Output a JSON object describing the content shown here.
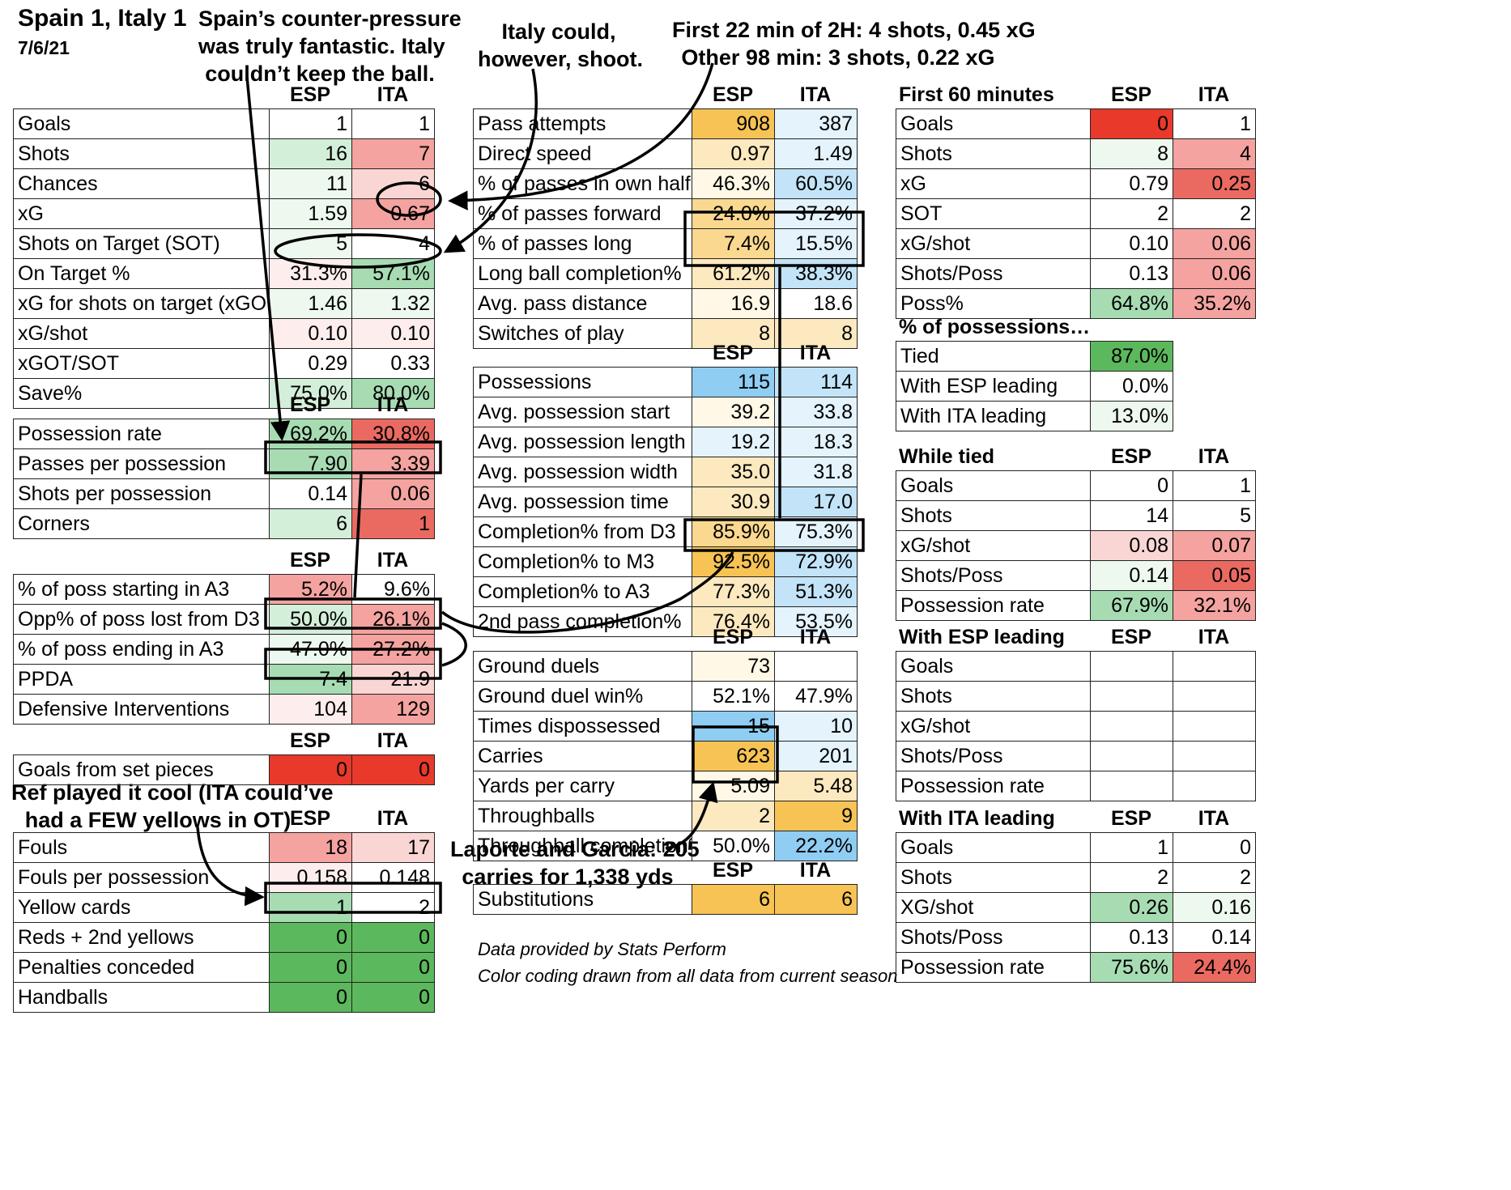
{
  "title": "Spain 1, Italy 1",
  "date": "7/6/21",
  "team_a": "ESP",
  "team_b": "ITA",
  "annotations": {
    "counter_pressure": "Spain’s counter-pressure\nwas truly fantastic. Italy\ncouldn’t keep the ball.",
    "italy_shoot": "Italy could,\nhowever, shoot.",
    "second_half": "First 22 min of 2H: 4 shots, 0.45 xG\nOther 98 min: 3 shots, 0.22 xG",
    "ref": "Ref played it cool (ITA could’ve\nhad a FEW yellows in OT)",
    "carries": "Laporte and Garcia: 205\ncarries for 1,338 yds"
  },
  "footnotes": [
    "Data provided by Stats Perform",
    "Color coding drawn from all data from current season"
  ],
  "colors": {
    "green_dark": "#5cb85c",
    "green_mid": "#a7dcb3",
    "green_light": "#d4efd9",
    "green_faint": "#edf8ef",
    "red_dark": "#e8392b",
    "red_mid": "#ea6a62",
    "red_light": "#f4a3a0",
    "red_faint": "#f9d6d4",
    "red_pale": "#fdeeed",
    "orange_dark": "#f6c354",
    "orange_mid": "#fad88f",
    "orange_light": "#fde9bf",
    "orange_pale": "#fff8e6",
    "blue_mid": "#8fcdf3",
    "blue_light": "#c3e4f8",
    "blue_pale": "#e4f3fc"
  },
  "tables": {
    "main": {
      "rows": [
        {
          "label": "Goals",
          "a": "1",
          "b": "1",
          "ca": "",
          "cb": ""
        },
        {
          "label": "Shots",
          "a": "16",
          "b": "7",
          "ca": "green_light",
          "cb": "red_light"
        },
        {
          "label": "Chances",
          "a": "11",
          "b": "6",
          "ca": "green_faint",
          "cb": "red_faint"
        },
        {
          "label": "xG",
          "a": "1.59",
          "b": "0.67",
          "ca": "green_faint",
          "cb": "red_light"
        },
        {
          "label": "Shots on Target (SOT)",
          "a": "5",
          "b": "4",
          "ca": "green_faint",
          "cb": ""
        },
        {
          "label": "On Target %",
          "a": "31.3%",
          "b": "57.1%",
          "ca": "red_pale",
          "cb": "green_mid"
        },
        {
          "label": "xG for shots on target (xGOT)",
          "a": "1.46",
          "b": "1.32",
          "ca": "green_faint",
          "cb": "green_faint"
        },
        {
          "label": "xG/shot",
          "a": "0.10",
          "b": "0.10",
          "ca": "red_pale",
          "cb": "red_pale"
        },
        {
          "label": "xGOT/SOT",
          "a": "0.29",
          "b": "0.33",
          "ca": "",
          "cb": ""
        },
        {
          "label": "Save%",
          "a": "75.0%",
          "b": "80.0%",
          "ca": "green_light",
          "cb": "green_mid"
        }
      ]
    },
    "possession": {
      "rows": [
        {
          "label": "Possession rate",
          "a": "69.2%",
          "b": "30.8%",
          "ca": "green_mid",
          "cb": "red_mid"
        },
        {
          "label": "Passes per possession",
          "a": "7.90",
          "b": "3.39",
          "ca": "green_mid",
          "cb": "red_light"
        },
        {
          "label": "Shots per possession",
          "a": "0.14",
          "b": "0.06",
          "ca": "",
          "cb": "red_light"
        },
        {
          "label": "Corners",
          "a": "6",
          "b": "1",
          "ca": "green_light",
          "cb": "red_mid"
        }
      ]
    },
    "pressing": {
      "rows": [
        {
          "label": "% of poss starting in A3",
          "a": "5.2%",
          "b": "9.6%",
          "ca": "red_light",
          "cb": ""
        },
        {
          "label": "Opp% of poss lost from D3",
          "a": "50.0%",
          "b": "26.1%",
          "ca": "green_light",
          "cb": "red_light"
        },
        {
          "label": "% of poss ending in A3",
          "a": "47.0%",
          "b": "27.2%",
          "ca": "green_faint",
          "cb": "red_light"
        },
        {
          "label": "PPDA",
          "a": "7.4",
          "b": "21.9",
          "ca": "green_mid",
          "cb": "red_faint"
        },
        {
          "label": "Defensive Interventions",
          "a": "104",
          "b": "129",
          "ca": "red_pale",
          "cb": "red_light"
        }
      ]
    },
    "setpieces": {
      "rows": [
        {
          "label": "Goals from set pieces",
          "a": "0",
          "b": "0",
          "ca": "red_dark",
          "cb": "red_dark"
        }
      ]
    },
    "discipline": {
      "rows": [
        {
          "label": "Fouls",
          "a": "18",
          "b": "17",
          "ca": "red_light",
          "cb": "red_faint"
        },
        {
          "label": "Fouls per possession",
          "a": "0.158",
          "b": "0.148",
          "ca": "red_pale",
          "cb": ""
        },
        {
          "label": "Yellow cards",
          "a": "1",
          "b": "2",
          "ca": "green_mid",
          "cb": ""
        },
        {
          "label": "Reds + 2nd yellows",
          "a": "0",
          "b": "0",
          "ca": "green_dark",
          "cb": "green_dark"
        },
        {
          "label": "Penalties conceded",
          "a": "0",
          "b": "0",
          "ca": "green_dark",
          "cb": "green_dark"
        },
        {
          "label": "Handballs",
          "a": "0",
          "b": "0",
          "ca": "green_dark",
          "cb": "green_dark"
        }
      ]
    },
    "passing": {
      "rows": [
        {
          "label": "Pass attempts",
          "a": "908",
          "b": "387",
          "ca": "orange_dark",
          "cb": "blue_pale"
        },
        {
          "label": "Direct speed",
          "a": "0.97",
          "b": "1.49",
          "ca": "orange_light",
          "cb": "blue_pale"
        },
        {
          "label": "% of passes in own half",
          "a": "46.3%",
          "b": "60.5%",
          "ca": "orange_pale",
          "cb": "blue_light"
        },
        {
          "label": "% of passes forward",
          "a": "24.0%",
          "b": "37.2%",
          "ca": "orange_mid",
          "cb": "blue_pale"
        },
        {
          "label": "% of passes long",
          "a": "7.4%",
          "b": "15.5%",
          "ca": "orange_mid",
          "cb": "blue_pale"
        },
        {
          "label": "Long ball completion%",
          "a": "61.2%",
          "b": "38.3%",
          "ca": "orange_light",
          "cb": "blue_light"
        },
        {
          "label": "Avg. pass distance",
          "a": "16.9",
          "b": "18.6",
          "ca": "orange_pale",
          "cb": ""
        },
        {
          "label": "Switches of play",
          "a": "8",
          "b": "8",
          "ca": "orange_light",
          "cb": "orange_light"
        }
      ]
    },
    "possessions2": {
      "rows": [
        {
          "label": "Possessions",
          "a": "115",
          "b": "114",
          "ca": "blue_mid",
          "cb": "blue_light"
        },
        {
          "label": "Avg. possession start",
          "a": "39.2",
          "b": "33.8",
          "ca": "orange_pale",
          "cb": "blue_pale"
        },
        {
          "label": "Avg. possession length",
          "a": "19.2",
          "b": "18.3",
          "ca": "blue_pale",
          "cb": "blue_pale"
        },
        {
          "label": "Avg. possession width",
          "a": "35.0",
          "b": "31.8",
          "ca": "orange_light",
          "cb": "blue_pale"
        },
        {
          "label": "Avg. possession time",
          "a": "30.9",
          "b": "17.0",
          "ca": "orange_light",
          "cb": "blue_light"
        },
        {
          "label": "Completion% from D3",
          "a": "85.9%",
          "b": "75.3%",
          "ca": "orange_mid",
          "cb": "blue_pale"
        },
        {
          "label": "Completion% to M3",
          "a": "92.5%",
          "b": "72.9%",
          "ca": "orange_dark",
          "cb": "blue_light"
        },
        {
          "label": "Completion% to A3",
          "a": "77.3%",
          "b": "51.3%",
          "ca": "orange_light",
          "cb": "blue_light"
        },
        {
          "label": "2nd pass completion%",
          "a": "76.4%",
          "b": "53.5%",
          "ca": "orange_light",
          "cb": "blue_pale"
        }
      ]
    },
    "duels": {
      "rows": [
        {
          "label": "Ground duels",
          "a": "73",
          "b": "",
          "ca": "orange_pale",
          "cb": ""
        },
        {
          "label": "Ground duel win%",
          "a": "52.1%",
          "b": "47.9%",
          "ca": "",
          "cb": ""
        },
        {
          "label": "Times dispossessed",
          "a": "15",
          "b": "10",
          "ca": "blue_mid",
          "cb": "blue_pale"
        },
        {
          "label": "Carries",
          "a": "623",
          "b": "201",
          "ca": "orange_dark",
          "cb": "blue_pale"
        },
        {
          "label": "Yards per carry",
          "a": "5.09",
          "b": "5.48",
          "ca": "orange_pale",
          "cb": "orange_light"
        },
        {
          "label": "Throughballs",
          "a": "2",
          "b": "9",
          "ca": "orange_light",
          "cb": "orange_dark"
        },
        {
          "label": "Throughball completion%",
          "a": "50.0%",
          "b": "22.2%",
          "ca": "",
          "cb": "blue_mid"
        }
      ]
    },
    "subs": {
      "rows": [
        {
          "label": "Substitutions",
          "a": "6",
          "b": "6",
          "ca": "orange_dark",
          "cb": "orange_dark"
        }
      ]
    },
    "first60": {
      "title": "First 60 minutes",
      "rows": [
        {
          "label": "Goals",
          "a": "0",
          "b": "1",
          "ca": "red_dark",
          "cb": ""
        },
        {
          "label": "Shots",
          "a": "8",
          "b": "4",
          "ca": "green_faint",
          "cb": "red_light"
        },
        {
          "label": "xG",
          "a": "0.79",
          "b": "0.25",
          "ca": "",
          "cb": "red_mid"
        },
        {
          "label": "SOT",
          "a": "2",
          "b": "2",
          "ca": "",
          "cb": ""
        },
        {
          "label": "xG/shot",
          "a": "0.10",
          "b": "0.06",
          "ca": "",
          "cb": "red_light"
        },
        {
          "label": "Shots/Poss",
          "a": "0.13",
          "b": "0.06",
          "ca": "",
          "cb": "red_light"
        },
        {
          "label": "Poss%",
          "a": "64.8%",
          "b": "35.2%",
          "ca": "green_mid",
          "cb": "red_light"
        }
      ]
    },
    "possessions_state": {
      "title": "% of possessions…",
      "rows": [
        {
          "label": "Tied",
          "a": "87.0%",
          "ca": "green_dark"
        },
        {
          "label": "With ESP leading",
          "a": "0.0%",
          "ca": ""
        },
        {
          "label": "With ITA leading",
          "a": "13.0%",
          "ca": "green_faint"
        }
      ]
    },
    "tied": {
      "title": "While tied",
      "rows": [
        {
          "label": "Goals",
          "a": "0",
          "b": "1",
          "ca": "",
          "cb": ""
        },
        {
          "label": "Shots",
          "a": "14",
          "b": "5",
          "ca": "",
          "cb": ""
        },
        {
          "label": "xG/shot",
          "a": "0.08",
          "b": "0.07",
          "ca": "red_faint",
          "cb": "red_light"
        },
        {
          "label": "Shots/Poss",
          "a": "0.14",
          "b": "0.05",
          "ca": "green_faint",
          "cb": "red_mid"
        },
        {
          "label": "Possession rate",
          "a": "67.9%",
          "b": "32.1%",
          "ca": "green_mid",
          "cb": "red_light"
        }
      ]
    },
    "esp_leading": {
      "title": "With ESP leading",
      "rows": [
        {
          "label": "Goals",
          "a": "",
          "b": "",
          "ca": "",
          "cb": ""
        },
        {
          "label": "Shots",
          "a": "",
          "b": "",
          "ca": "",
          "cb": ""
        },
        {
          "label": "xG/shot",
          "a": "",
          "b": "",
          "ca": "",
          "cb": ""
        },
        {
          "label": "Shots/Poss",
          "a": "",
          "b": "",
          "ca": "",
          "cb": ""
        },
        {
          "label": "Possession rate",
          "a": "",
          "b": "",
          "ca": "",
          "cb": ""
        }
      ]
    },
    "ita_leading": {
      "title": "With ITA leading",
      "rows": [
        {
          "label": "Goals",
          "a": "1",
          "b": "0",
          "ca": "",
          "cb": ""
        },
        {
          "label": "Shots",
          "a": "2",
          "b": "2",
          "ca": "",
          "cb": ""
        },
        {
          "label": "XG/shot",
          "a": "0.26",
          "b": "0.16",
          "ca": "green_mid",
          "cb": "green_faint"
        },
        {
          "label": "Shots/Poss",
          "a": "0.13",
          "b": "0.14",
          "ca": "",
          "cb": ""
        },
        {
          "label": "Possession rate",
          "a": "75.6%",
          "b": "24.4%",
          "ca": "green_mid",
          "cb": "red_mid"
        }
      ]
    }
  }
}
